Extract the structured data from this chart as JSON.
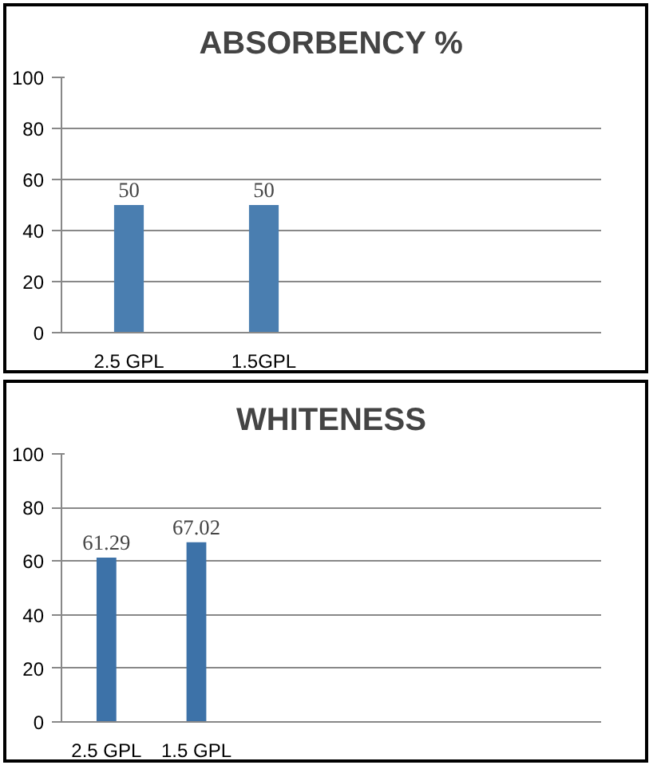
{
  "chart_data": [
    {
      "type": "bar",
      "title": "ABSORBENCY %",
      "categories": [
        "2.5 GPL",
        "1.5GPL",
        null,
        null
      ],
      "values": [
        50,
        50,
        null,
        null
      ],
      "color": "#4a7eb0",
      "ylim": [
        0,
        100
      ],
      "yticks": [
        0,
        20,
        40,
        60,
        80,
        100
      ],
      "grid": "y",
      "data_labels": true
    },
    {
      "type": "bar",
      "title": "WHITENESS",
      "categories": [
        "2.5 GPL",
        "1.5 GPL",
        null,
        null,
        null,
        null
      ],
      "values": [
        61.29,
        67.02,
        null,
        null,
        null,
        null
      ],
      "color": "#3d72a8",
      "ylim": [
        0,
        100
      ],
      "yticks": [
        0,
        20,
        40,
        60,
        80,
        100
      ],
      "grid": "y",
      "data_labels": true
    }
  ]
}
